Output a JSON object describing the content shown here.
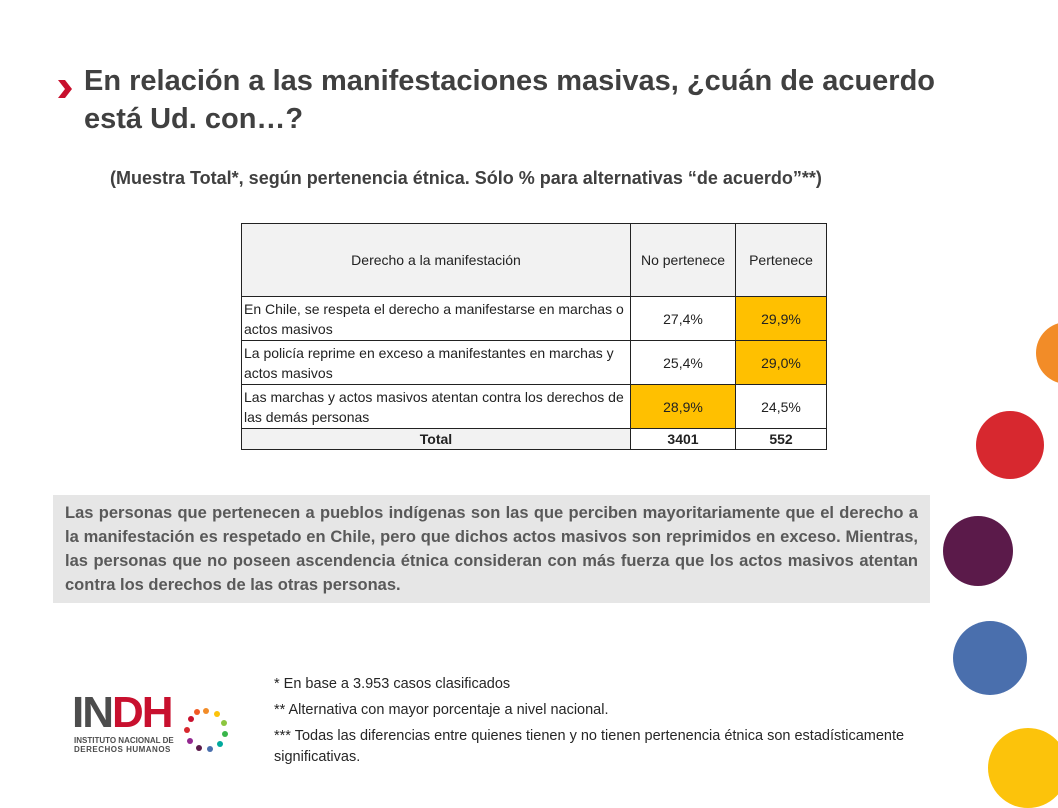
{
  "title": "En relación a las manifestaciones masivas, ¿cuán de acuerdo está Ud. con…?",
  "subtitle": "(Muestra Total*, según pertenencia étnica. Sólo % para alternativas “de acuerdo”**)",
  "table": {
    "headers": [
      "Derecho a la manifestación",
      "No pertenece",
      "Pertenece"
    ],
    "rows": [
      {
        "label": "En Chile, se respeta el derecho a manifestarse en marchas o actos masivos",
        "no_pertenece": "27,4%",
        "pertenece": "29,9%"
      },
      {
        "label": "La policía reprime en exceso a manifestantes en marchas y actos masivos",
        "no_pertenece": "25,4%",
        "pertenece": "29,0%"
      },
      {
        "label": "Las marchas y actos masivos atentan contra los derechos de las demás personas",
        "no_pertenece": "28,9%",
        "pertenece": "24,5%"
      }
    ],
    "total": {
      "label": "Total",
      "no_pertenece": "3401",
      "pertenece": "552"
    },
    "highlight_color": "#ffc000"
  },
  "summary": "Las personas que pertenecen a pueblos indígenas son las que perciben mayoritariamente que el derecho a la manifestación es respetado en Chile, pero que dichos actos masivos son reprimidos en exceso. Mientras, las personas que no poseen ascendencia étnica consideran con más fuerza que los actos masivos atentan contra los derechos de las otras personas.",
  "notes": [
    "* En base a 3.953 casos clasificados",
    "** Alternativa con mayor porcentaje a nivel nacional.",
    "*** Todas las diferencias entre quienes tienen y no tienen pertenencia étnica son estadísticamente significativas."
  ],
  "logo": {
    "acronym_part1": "IN",
    "acronym_part2": "DH",
    "line1": "INSTITUTO NACIONAL DE",
    "line2": "DERECHOS HUMANOS",
    "accent_color": "#c8102e"
  },
  "decor_colors": [
    "#f28c28",
    "#d7282f",
    "#5b1a4a",
    "#4a6fad",
    "#fcc30b"
  ]
}
